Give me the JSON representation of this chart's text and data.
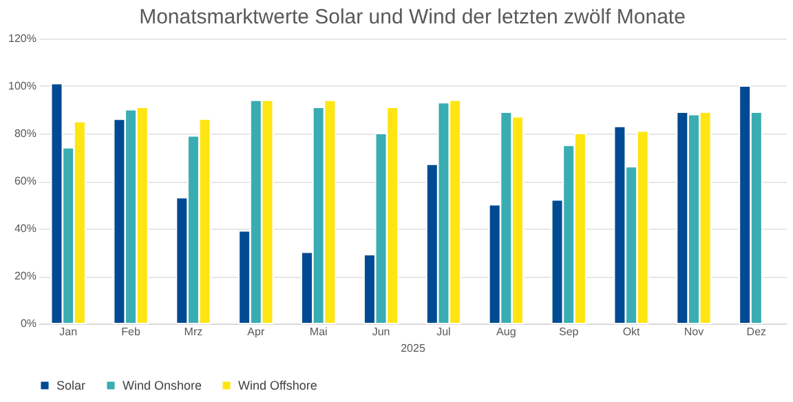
{
  "chart_data": {
    "type": "bar",
    "title": "Monatsmarktwerte Solar und Wind der letzten zwölf Monate",
    "xlabel": "2025",
    "categories": [
      "Jan",
      "Feb",
      "Mrz",
      "Apr",
      "Mai",
      "Jun",
      "Jul",
      "Aug",
      "Sep",
      "Okt",
      "Nov",
      "Dez"
    ],
    "series": [
      {
        "name": "Solar",
        "color": "#004a93",
        "values": [
          101,
          86,
          53,
          39,
          30,
          29,
          67,
          50,
          52,
          83,
          89,
          100
        ]
      },
      {
        "name": "Wind Onshore",
        "color": "#39adb2",
        "values": [
          74,
          90,
          79,
          94,
          91,
          80,
          93,
          89,
          75,
          66,
          88,
          89
        ]
      },
      {
        "name": "Wind Offshore",
        "color": "#ffe511",
        "values": [
          85,
          91,
          86,
          94,
          94,
          91,
          94,
          87,
          80,
          81,
          89,
          null
        ]
      }
    ],
    "ylim": [
      0,
      120
    ],
    "yticks": [
      {
        "value": 0,
        "label": "0%"
      },
      {
        "value": 20,
        "label": "20%"
      },
      {
        "value": 40,
        "label": "40%"
      },
      {
        "value": 60,
        "label": "60%"
      },
      {
        "value": 80,
        "label": "80%"
      },
      {
        "value": 100,
        "label": "100%"
      },
      {
        "value": 120,
        "label": "120%"
      }
    ],
    "grid": "y",
    "legend": "bottom"
  }
}
